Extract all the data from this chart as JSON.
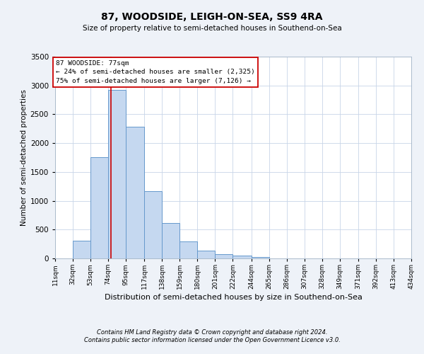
{
  "title": "87, WOODSIDE, LEIGH-ON-SEA, SS9 4RA",
  "subtitle": "Size of property relative to semi-detached houses in Southend-on-Sea",
  "xlabel": "Distribution of semi-detached houses by size in Southend-on-Sea",
  "ylabel": "Number of semi-detached properties",
  "bin_edges": [
    11,
    32,
    53,
    74,
    95,
    117,
    138,
    159,
    180,
    201,
    222,
    244,
    265,
    286,
    307,
    328,
    349,
    371,
    392,
    413,
    434
  ],
  "bar_heights": [
    0,
    310,
    1760,
    2920,
    2290,
    1170,
    610,
    290,
    140,
    75,
    50,
    25,
    0,
    0,
    0,
    0,
    0,
    0,
    0,
    0
  ],
  "bar_color": "#c5d8f0",
  "bar_edge_color": "#6699cc",
  "property_line_x": 77,
  "annotation_line1": "87 WOODSIDE: 77sqm",
  "annotation_line2": "← 24% of semi-detached houses are smaller (2,325)",
  "annotation_line3": "75% of semi-detached houses are larger (7,126) →",
  "ylim": [
    0,
    3500
  ],
  "yticks": [
    0,
    500,
    1000,
    1500,
    2000,
    2500,
    3000,
    3500
  ],
  "footnote1": "Contains HM Land Registry data © Crown copyright and database right 2024.",
  "footnote2": "Contains public sector information licensed under the Open Government Licence v3.0.",
  "background_color": "#eef2f8",
  "plot_bg_color": "#ffffff",
  "grid_color": "#c8d4e8",
  "annotation_box_color": "#ffffff",
  "annotation_box_edge": "#cc0000",
  "property_line_color": "#cc0000"
}
